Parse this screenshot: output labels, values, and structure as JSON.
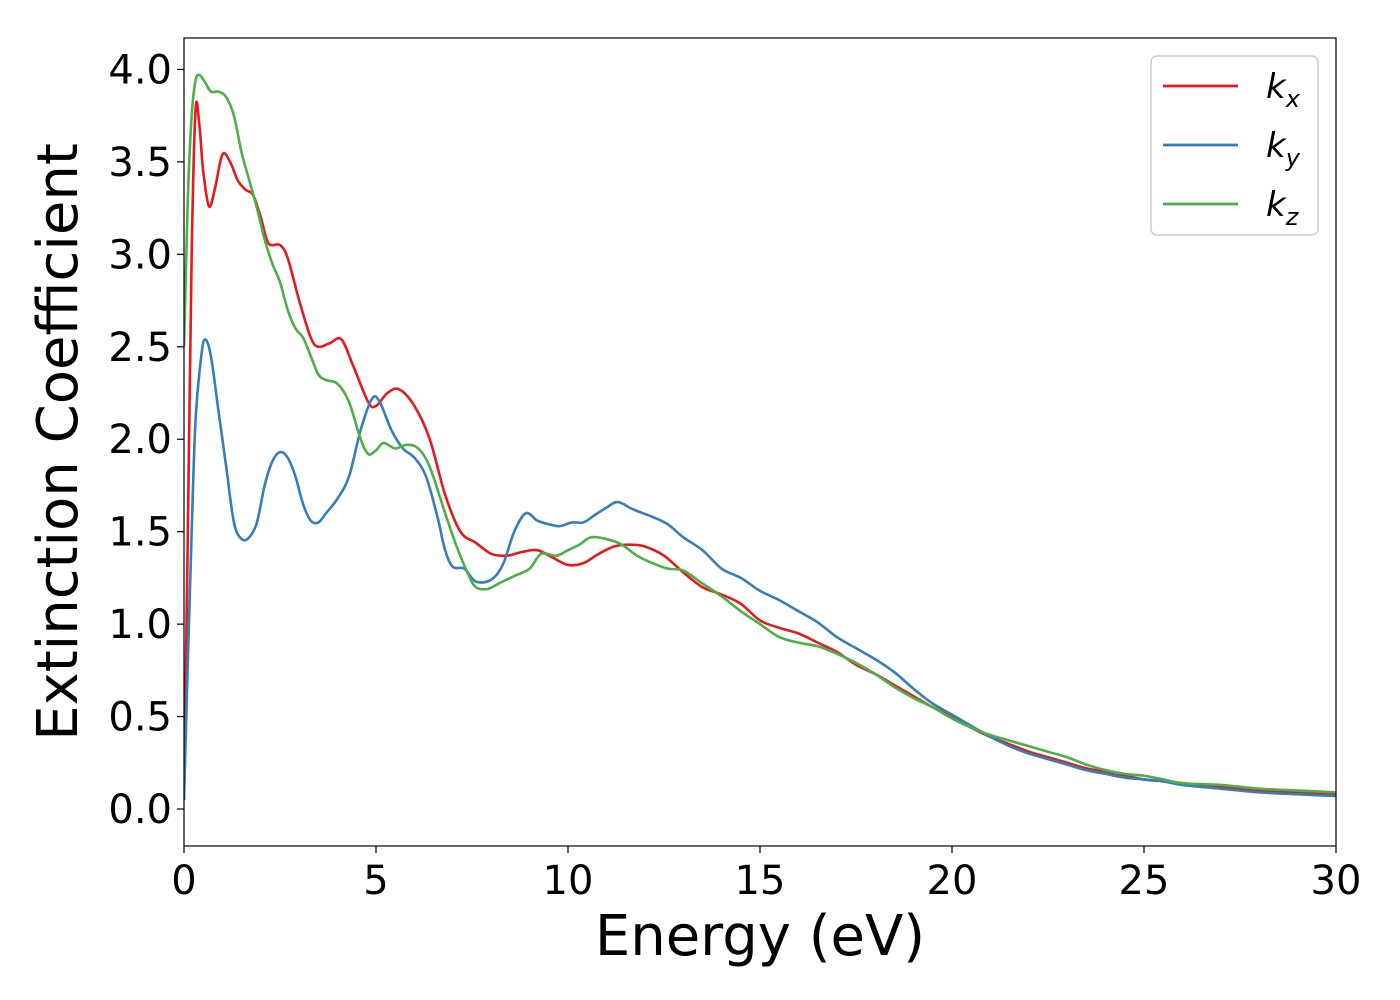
{
  "chart_data": {
    "type": "line",
    "title": "",
    "xlabel": "Energy (eV)",
    "ylabel": "Extinction Coefficient",
    "xlim": [
      0,
      30
    ],
    "ylim": [
      -0.2,
      4.17
    ],
    "xticks": [
      0,
      5,
      10,
      15,
      20,
      25,
      30
    ],
    "xtick_labels": [
      "0",
      "5",
      "10",
      "15",
      "20",
      "25",
      "30"
    ],
    "yticks": [
      0.0,
      0.5,
      1.0,
      1.5,
      2.0,
      2.5,
      3.0,
      3.5,
      4.0
    ],
    "ytick_labels": [
      "0.0",
      "0.5",
      "1.0",
      "1.5",
      "2.0",
      "2.5",
      "3.0",
      "3.5",
      "4.0"
    ],
    "grid": false,
    "legend_position": "top-right",
    "series": [
      {
        "name": "k_x",
        "legend_base": "k",
        "legend_sub": "x",
        "color": "#e41a1c",
        "points": [
          [
            0.0,
            0.05
          ],
          [
            0.1,
            1.5
          ],
          [
            0.2,
            3.0
          ],
          [
            0.3,
            3.78
          ],
          [
            0.4,
            3.7
          ],
          [
            0.5,
            3.45
          ],
          [
            0.65,
            3.26
          ],
          [
            0.8,
            3.35
          ],
          [
            1.0,
            3.54
          ],
          [
            1.2,
            3.5
          ],
          [
            1.4,
            3.4
          ],
          [
            1.6,
            3.35
          ],
          [
            1.8,
            3.32
          ],
          [
            2.0,
            3.2
          ],
          [
            2.2,
            3.06
          ],
          [
            2.5,
            3.05
          ],
          [
            2.7,
            2.98
          ],
          [
            3.0,
            2.75
          ],
          [
            3.3,
            2.55
          ],
          [
            3.5,
            2.5
          ],
          [
            3.8,
            2.52
          ],
          [
            4.1,
            2.54
          ],
          [
            4.4,
            2.4
          ],
          [
            4.8,
            2.2
          ],
          [
            5.0,
            2.18
          ],
          [
            5.3,
            2.25
          ],
          [
            5.6,
            2.27
          ],
          [
            6.0,
            2.18
          ],
          [
            6.4,
            2.0
          ],
          [
            6.8,
            1.7
          ],
          [
            7.2,
            1.5
          ],
          [
            7.6,
            1.44
          ],
          [
            8.0,
            1.38
          ],
          [
            8.4,
            1.37
          ],
          [
            8.8,
            1.39
          ],
          [
            9.2,
            1.4
          ],
          [
            9.6,
            1.36
          ],
          [
            10.0,
            1.32
          ],
          [
            10.4,
            1.33
          ],
          [
            10.8,
            1.38
          ],
          [
            11.2,
            1.42
          ],
          [
            11.6,
            1.43
          ],
          [
            12.0,
            1.42
          ],
          [
            12.5,
            1.37
          ],
          [
            13.0,
            1.28
          ],
          [
            13.5,
            1.2
          ],
          [
            14.0,
            1.16
          ],
          [
            14.5,
            1.11
          ],
          [
            15.0,
            1.02
          ],
          [
            15.5,
            0.98
          ],
          [
            16.0,
            0.95
          ],
          [
            16.5,
            0.9
          ],
          [
            17.0,
            0.85
          ],
          [
            17.5,
            0.78
          ],
          [
            18.0,
            0.73
          ],
          [
            18.5,
            0.67
          ],
          [
            19.0,
            0.61
          ],
          [
            19.5,
            0.55
          ],
          [
            20.0,
            0.5
          ],
          [
            20.5,
            0.44
          ],
          [
            21.0,
            0.39
          ],
          [
            21.5,
            0.35
          ],
          [
            22.0,
            0.31
          ],
          [
            22.5,
            0.28
          ],
          [
            23.0,
            0.25
          ],
          [
            23.5,
            0.22
          ],
          [
            24.0,
            0.2
          ],
          [
            24.5,
            0.18
          ],
          [
            25.0,
            0.16
          ],
          [
            25.5,
            0.15
          ],
          [
            26.0,
            0.14
          ],
          [
            27.0,
            0.12
          ],
          [
            28.0,
            0.1
          ],
          [
            29.0,
            0.09
          ],
          [
            30.0,
            0.08
          ]
        ]
      },
      {
        "name": "k_y",
        "legend_base": "k",
        "legend_sub": "y",
        "color": "#377eb8",
        "points": [
          [
            0.0,
            0.05
          ],
          [
            0.1,
            0.8
          ],
          [
            0.2,
            1.5
          ],
          [
            0.3,
            2.1
          ],
          [
            0.45,
            2.45
          ],
          [
            0.55,
            2.54
          ],
          [
            0.7,
            2.45
          ],
          [
            0.9,
            2.15
          ],
          [
            1.1,
            1.85
          ],
          [
            1.3,
            1.55
          ],
          [
            1.5,
            1.46
          ],
          [
            1.7,
            1.47
          ],
          [
            1.9,
            1.55
          ],
          [
            2.1,
            1.75
          ],
          [
            2.3,
            1.88
          ],
          [
            2.5,
            1.93
          ],
          [
            2.7,
            1.9
          ],
          [
            2.9,
            1.8
          ],
          [
            3.1,
            1.65
          ],
          [
            3.3,
            1.56
          ],
          [
            3.5,
            1.55
          ],
          [
            3.7,
            1.6
          ],
          [
            4.0,
            1.68
          ],
          [
            4.3,
            1.8
          ],
          [
            4.6,
            2.05
          ],
          [
            4.9,
            2.22
          ],
          [
            5.1,
            2.2
          ],
          [
            5.4,
            2.05
          ],
          [
            5.7,
            1.95
          ],
          [
            6.0,
            1.9
          ],
          [
            6.3,
            1.8
          ],
          [
            6.6,
            1.58
          ],
          [
            6.8,
            1.4
          ],
          [
            7.0,
            1.31
          ],
          [
            7.3,
            1.3
          ],
          [
            7.6,
            1.23
          ],
          [
            8.0,
            1.24
          ],
          [
            8.3,
            1.32
          ],
          [
            8.6,
            1.5
          ],
          [
            8.9,
            1.6
          ],
          [
            9.2,
            1.56
          ],
          [
            9.5,
            1.54
          ],
          [
            9.8,
            1.53
          ],
          [
            10.1,
            1.55
          ],
          [
            10.4,
            1.55
          ],
          [
            10.7,
            1.59
          ],
          [
            11.0,
            1.63
          ],
          [
            11.3,
            1.66
          ],
          [
            11.7,
            1.62
          ],
          [
            12.2,
            1.58
          ],
          [
            12.6,
            1.54
          ],
          [
            13.0,
            1.47
          ],
          [
            13.5,
            1.4
          ],
          [
            14.0,
            1.3
          ],
          [
            14.5,
            1.25
          ],
          [
            15.0,
            1.18
          ],
          [
            15.5,
            1.13
          ],
          [
            16.0,
            1.07
          ],
          [
            16.5,
            1.01
          ],
          [
            17.0,
            0.93
          ],
          [
            17.5,
            0.87
          ],
          [
            18.0,
            0.81
          ],
          [
            18.5,
            0.74
          ],
          [
            19.0,
            0.65
          ],
          [
            19.5,
            0.57
          ],
          [
            20.0,
            0.51
          ],
          [
            20.5,
            0.45
          ],
          [
            21.0,
            0.39
          ],
          [
            21.5,
            0.34
          ],
          [
            22.0,
            0.3
          ],
          [
            22.5,
            0.27
          ],
          [
            23.0,
            0.24
          ],
          [
            23.5,
            0.21
          ],
          [
            24.0,
            0.19
          ],
          [
            24.5,
            0.17
          ],
          [
            25.0,
            0.16
          ],
          [
            25.5,
            0.15
          ],
          [
            26.0,
            0.13
          ],
          [
            27.0,
            0.11
          ],
          [
            28.0,
            0.09
          ],
          [
            29.0,
            0.08
          ],
          [
            30.0,
            0.07
          ]
        ]
      },
      {
        "name": "k_z",
        "legend_base": "k",
        "legend_sub": "z",
        "color": "#4daf4a",
        "points": [
          [
            0.0,
            2.5
          ],
          [
            0.1,
            3.3
          ],
          [
            0.2,
            3.75
          ],
          [
            0.3,
            3.94
          ],
          [
            0.4,
            3.97
          ],
          [
            0.55,
            3.93
          ],
          [
            0.7,
            3.88
          ],
          [
            0.9,
            3.88
          ],
          [
            1.1,
            3.85
          ],
          [
            1.3,
            3.75
          ],
          [
            1.5,
            3.55
          ],
          [
            1.7,
            3.4
          ],
          [
            1.9,
            3.25
          ],
          [
            2.1,
            3.08
          ],
          [
            2.3,
            2.95
          ],
          [
            2.5,
            2.85
          ],
          [
            2.7,
            2.7
          ],
          [
            2.9,
            2.6
          ],
          [
            3.1,
            2.55
          ],
          [
            3.3,
            2.45
          ],
          [
            3.5,
            2.35
          ],
          [
            3.7,
            2.32
          ],
          [
            4.0,
            2.3
          ],
          [
            4.3,
            2.2
          ],
          [
            4.6,
            2.0
          ],
          [
            4.8,
            1.92
          ],
          [
            5.0,
            1.94
          ],
          [
            5.2,
            1.98
          ],
          [
            5.5,
            1.95
          ],
          [
            5.8,
            1.97
          ],
          [
            6.1,
            1.95
          ],
          [
            6.4,
            1.85
          ],
          [
            6.8,
            1.6
          ],
          [
            7.1,
            1.42
          ],
          [
            7.4,
            1.27
          ],
          [
            7.6,
            1.2
          ],
          [
            7.9,
            1.19
          ],
          [
            8.2,
            1.22
          ],
          [
            8.6,
            1.26
          ],
          [
            9.0,
            1.3
          ],
          [
            9.3,
            1.38
          ],
          [
            9.7,
            1.37
          ],
          [
            10.0,
            1.4
          ],
          [
            10.3,
            1.43
          ],
          [
            10.6,
            1.47
          ],
          [
            11.0,
            1.46
          ],
          [
            11.4,
            1.43
          ],
          [
            11.8,
            1.37
          ],
          [
            12.2,
            1.33
          ],
          [
            12.6,
            1.3
          ],
          [
            13.0,
            1.29
          ],
          [
            13.5,
            1.22
          ],
          [
            14.0,
            1.15
          ],
          [
            14.5,
            1.07
          ],
          [
            15.0,
            1.0
          ],
          [
            15.5,
            0.93
          ],
          [
            16.0,
            0.9
          ],
          [
            16.5,
            0.88
          ],
          [
            17.0,
            0.84
          ],
          [
            17.5,
            0.79
          ],
          [
            18.0,
            0.73
          ],
          [
            18.5,
            0.66
          ],
          [
            19.0,
            0.6
          ],
          [
            19.5,
            0.55
          ],
          [
            20.0,
            0.49
          ],
          [
            20.5,
            0.44
          ],
          [
            21.0,
            0.4
          ],
          [
            21.5,
            0.37
          ],
          [
            22.0,
            0.34
          ],
          [
            22.5,
            0.31
          ],
          [
            23.0,
            0.28
          ],
          [
            23.5,
            0.24
          ],
          [
            24.0,
            0.21
          ],
          [
            24.5,
            0.19
          ],
          [
            25.0,
            0.18
          ],
          [
            25.5,
            0.16
          ],
          [
            26.0,
            0.14
          ],
          [
            27.0,
            0.13
          ],
          [
            28.0,
            0.11
          ],
          [
            29.0,
            0.1
          ],
          [
            30.0,
            0.09
          ]
        ]
      }
    ]
  }
}
